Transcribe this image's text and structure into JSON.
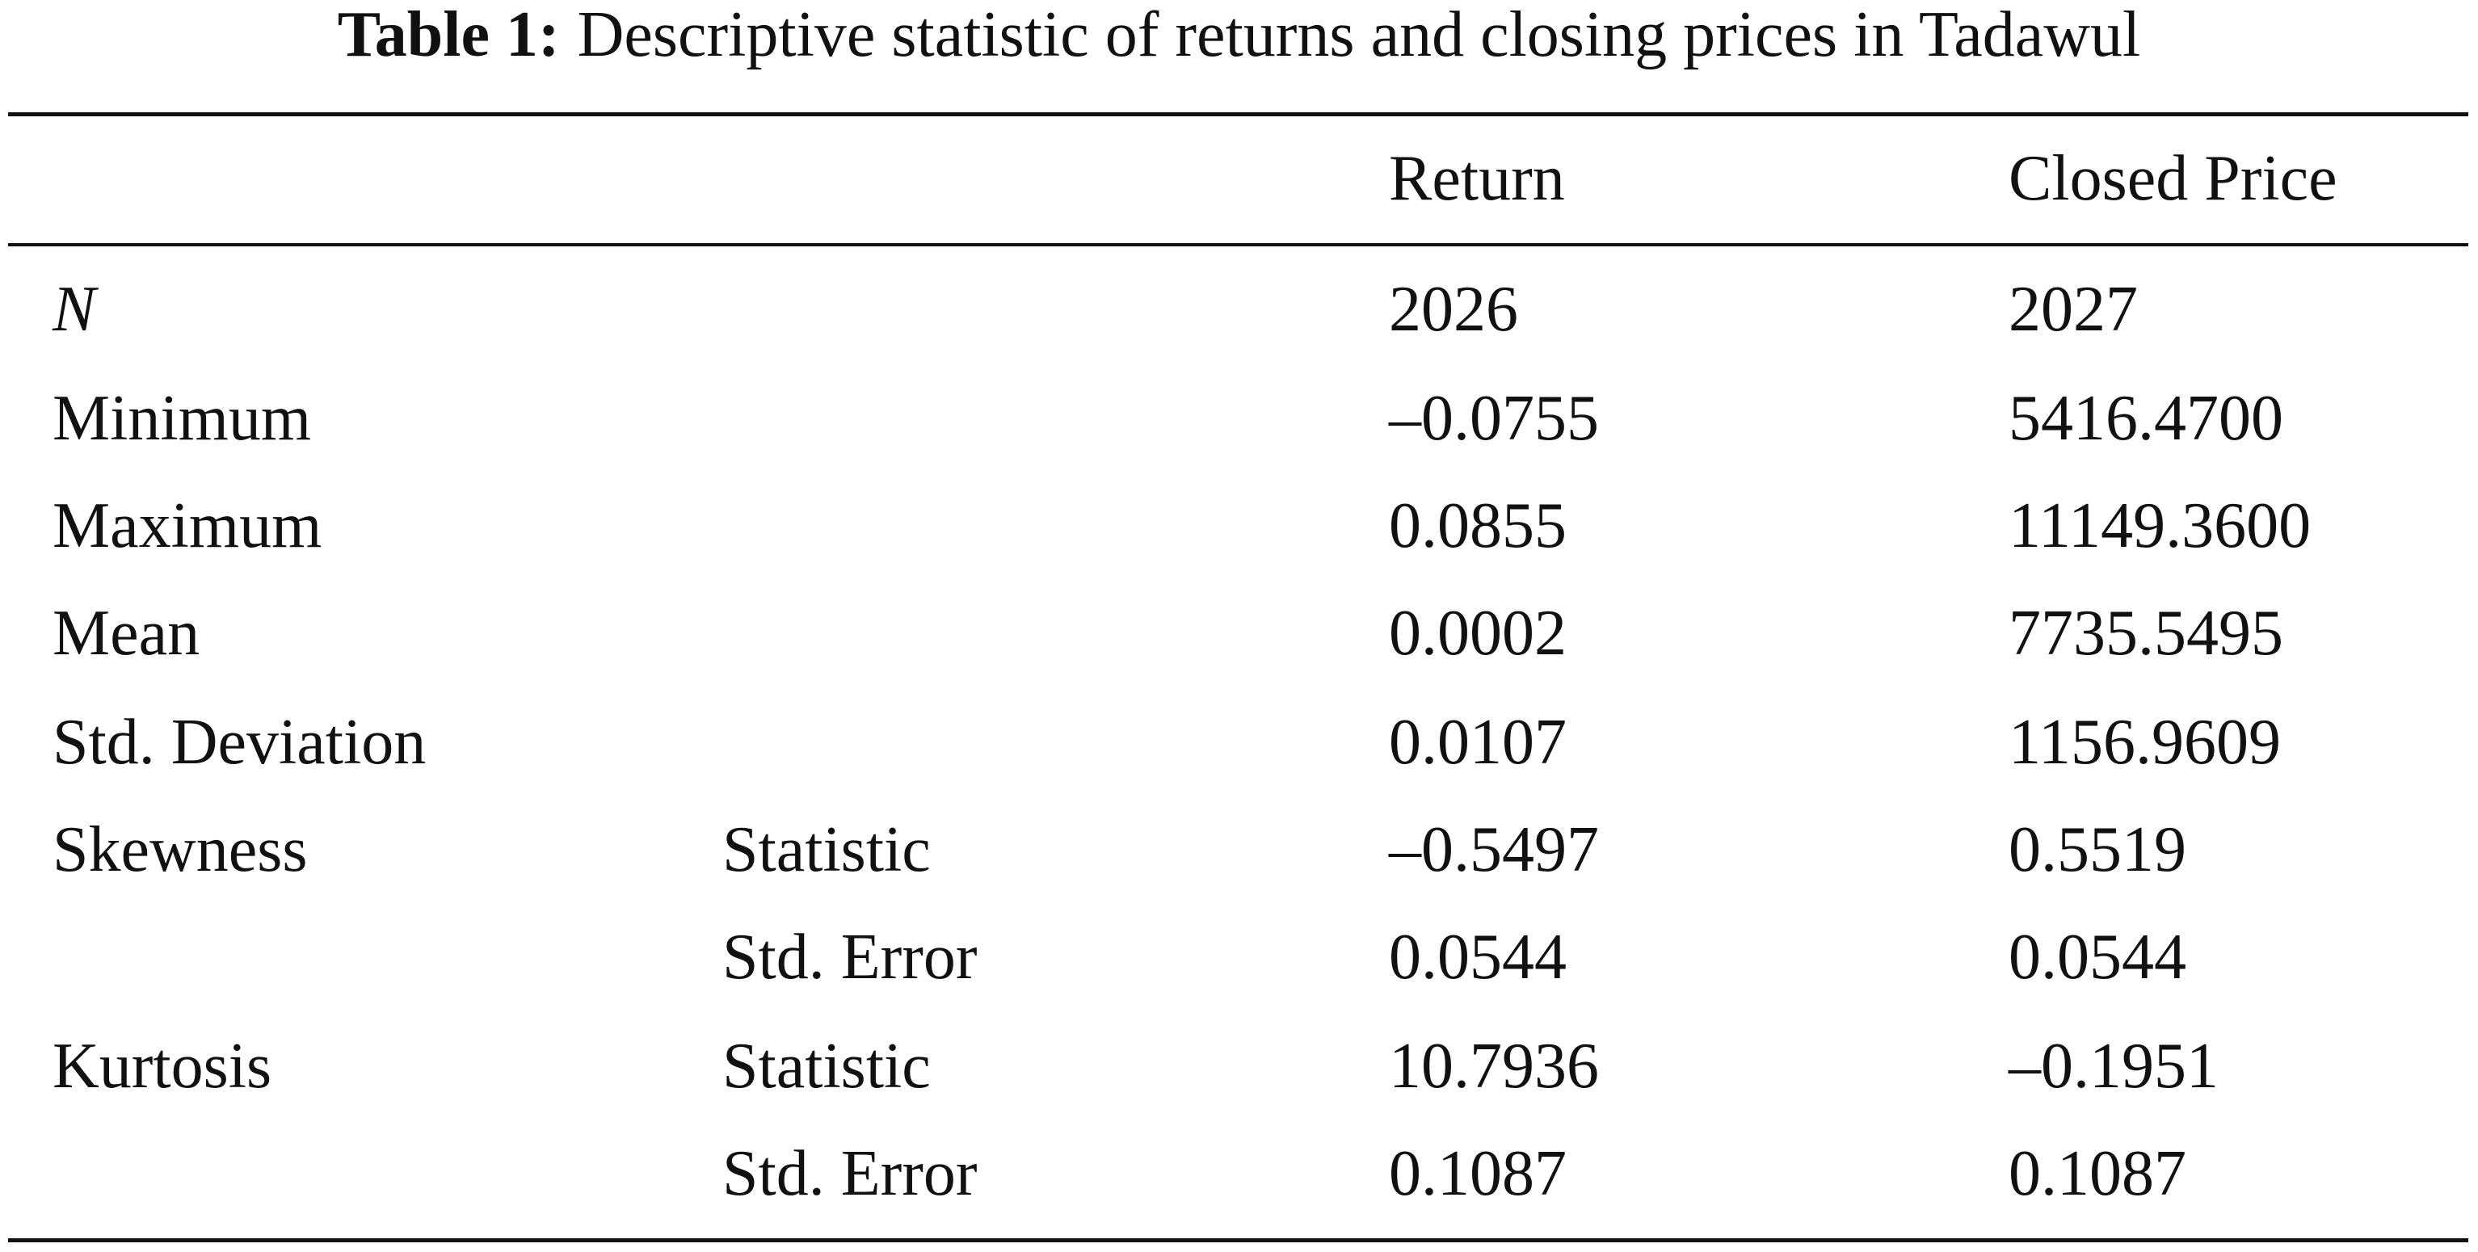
{
  "caption": {
    "label": "Table 1:",
    "text": "Descriptive statistic of returns and closing prices in Tadawul"
  },
  "table": {
    "headers": [
      "Return",
      "Closed Price"
    ],
    "rows": [
      {
        "label": "N",
        "values": [
          "2026",
          "2027"
        ]
      },
      {
        "label": "Minimum",
        "values": [
          "–0.0755",
          "5416.4700"
        ]
      },
      {
        "label": "Maximum",
        "values": [
          "0.0855",
          "11149.3600"
        ]
      },
      {
        "label": "Mean",
        "values": [
          "0.0002",
          "7735.5495"
        ]
      },
      {
        "label": "Std. Deviation",
        "values": [
          "0.0107",
          "1156.9609"
        ]
      },
      {
        "label": "Skewness",
        "sub": "Statistic",
        "values": [
          "–0.5497",
          "0.5519"
        ]
      },
      {
        "sub": "Std. Error",
        "values": [
          "0.0544",
          "0.0544"
        ]
      },
      {
        "label": "Kurtosis",
        "sub": "Statistic",
        "values": [
          "10.7936",
          "–0.1951"
        ]
      },
      {
        "sub": "Std. Error",
        "values": [
          "0.1087",
          "0.1087"
        ]
      }
    ]
  }
}
